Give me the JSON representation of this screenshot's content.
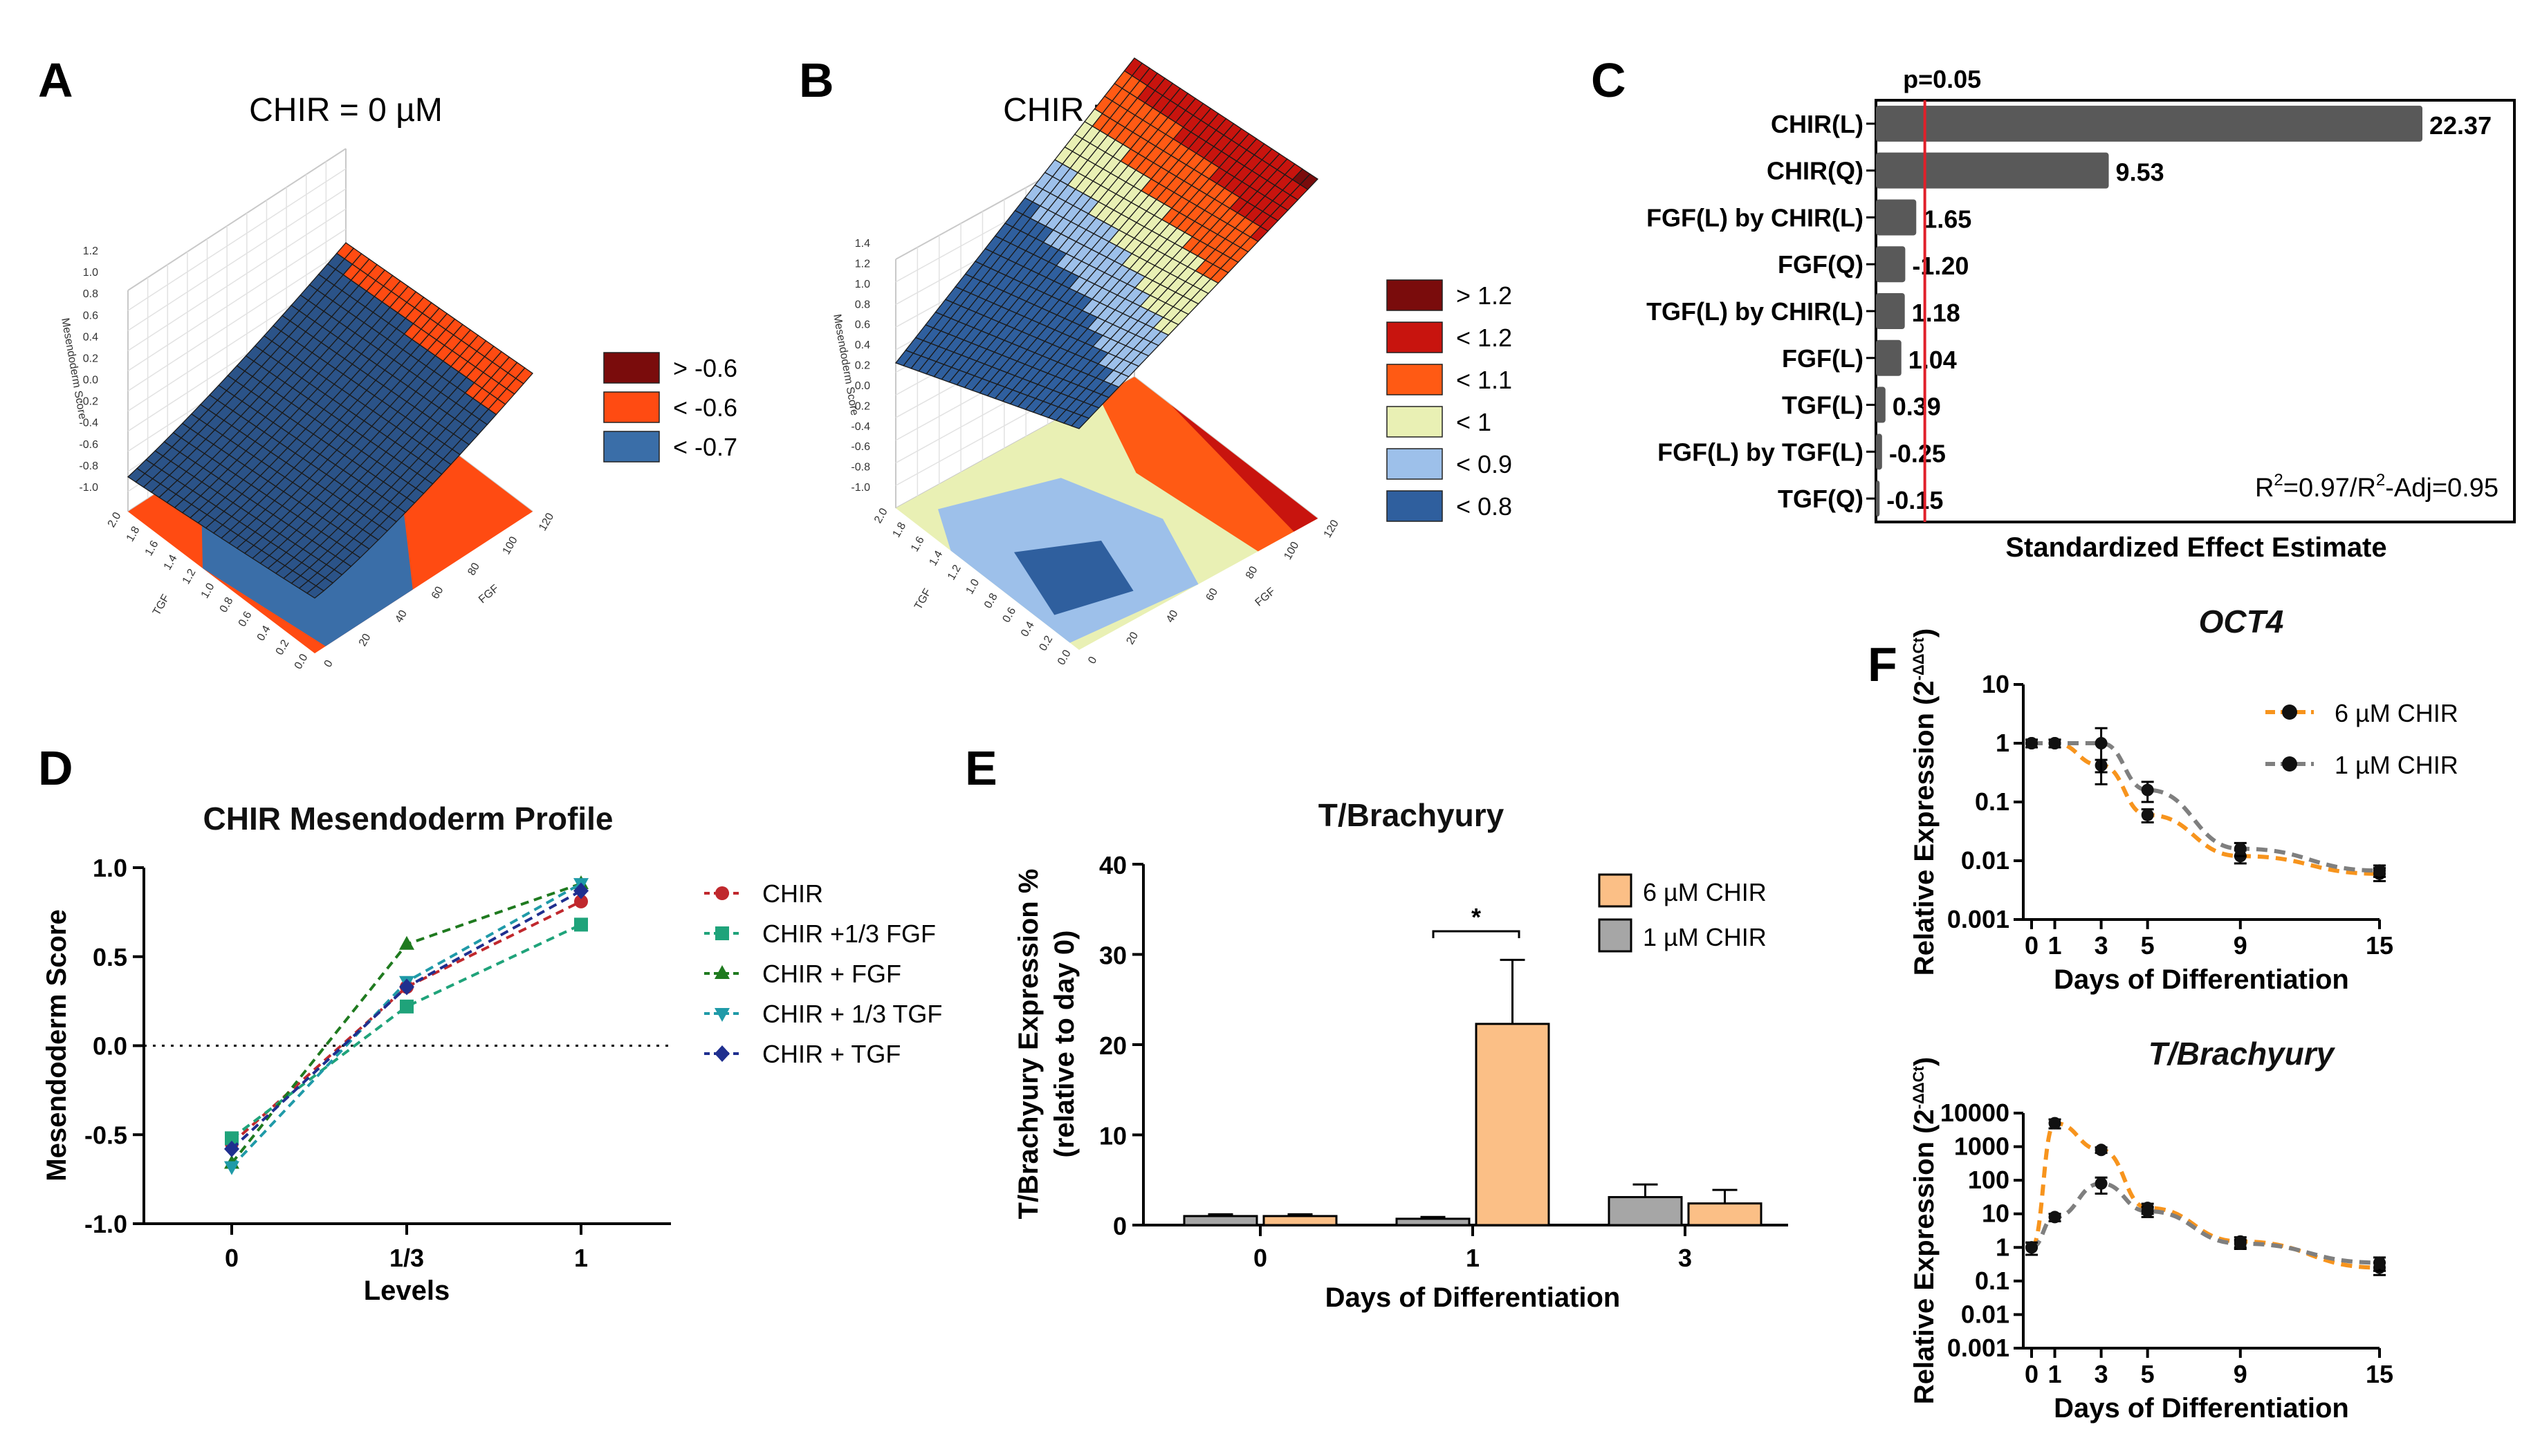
{
  "panel_labels": [
    "A",
    "B",
    "C",
    "D",
    "E",
    "F"
  ],
  "chart_data": [
    {
      "panel": "A",
      "type": "surface3d",
      "title": "CHIR = 0 µM",
      "zlabel": "Mesendoderm Score",
      "xlabel": "FGF",
      "ylabel": "TGF",
      "z_ticks": [
        "1.2",
        "1.0",
        "0.8",
        "0.6",
        "0.4",
        "0.2",
        "0.0",
        "-0.2",
        "-0.4",
        "-0.6",
        "-0.8",
        "-1.0"
      ],
      "y_ticks": [
        "0.0",
        "0.2",
        "0.4",
        "0.6",
        "0.8",
        "1.0",
        "1.2",
        "1.4",
        "1.6",
        "1.8",
        "2.0"
      ],
      "x_ticks": [
        "0",
        "20",
        "40",
        "60",
        "80",
        "100",
        "120"
      ],
      "legend": [
        {
          "label": "> -0.6",
          "color": "#7a0c0c"
        },
        {
          "label": "< -0.6",
          "color": "#ff4b12"
        },
        {
          "label": "< -0.7",
          "color": "#3a6ea8"
        }
      ]
    },
    {
      "panel": "B",
      "type": "surface3d",
      "title": "CHIR = 6 µM",
      "zlabel": "Mesendoderm Score",
      "xlabel": "FGF",
      "ylabel": "TGF",
      "z_ticks": [
        "1.4",
        "1.2",
        "1.0",
        "0.8",
        "0.6",
        "0.4",
        "0.2",
        "0.0",
        "-0.2",
        "-0.4",
        "-0.6",
        "-0.8",
        "-1.0"
      ],
      "y_ticks": [
        "0.0",
        "0.2",
        "0.4",
        "0.6",
        "0.8",
        "1.0",
        "1.2",
        "1.4",
        "1.6",
        "1.8",
        "2.0"
      ],
      "x_ticks": [
        "0",
        "20",
        "40",
        "60",
        "80",
        "100",
        "120"
      ],
      "legend": [
        {
          "label": "> 1.2",
          "color": "#7a0c0c"
        },
        {
          "label": "< 1.2",
          "color": "#c8140e"
        },
        {
          "label": "< 1.1",
          "color": "#ff5a14"
        },
        {
          "label": "< 1",
          "color": "#e9f0b4"
        },
        {
          "label": "< 0.9",
          "color": "#9dc0ea"
        },
        {
          "label": "< 0.8",
          "color": "#2f5f9e"
        }
      ]
    },
    {
      "panel": "C",
      "type": "bar",
      "orientation": "horizontal",
      "xlabel": "Standardized Effect Estimate",
      "reference_label": "p=0.05",
      "reference_value": 2.0,
      "xlim": [
        0,
        25
      ],
      "annotation": {
        "pre": "R",
        "sup": "2",
        "mid": "=0.97/R",
        "sup2": "2",
        "post": "-Adj=0.95"
      },
      "categories": [
        "CHIR(L)",
        "CHIR(Q)",
        "FGF(L) by CHIR(L)",
        "FGF(Q)",
        "TGF(L) by CHIR(L)",
        "FGF(L)",
        "TGF(L)",
        "FGF(L) by TGF(L)",
        "TGF(Q)"
      ],
      "values": [
        22.37,
        9.53,
        1.65,
        1.2,
        1.18,
        1.04,
        0.39,
        0.25,
        0.15
      ],
      "value_labels": [
        "22.37",
        "9.53",
        "1.65",
        "-1.20",
        "1.18",
        "1.04",
        "0.39",
        "-0.25",
        "-0.15"
      ],
      "color": "#595959"
    },
    {
      "panel": "D",
      "type": "line",
      "title": "CHIR Mesendoderm Profile",
      "xlabel": "Levels",
      "ylabel": "Mesendoderm Score",
      "categories": [
        "0",
        "1/3",
        "1"
      ],
      "ylim": [
        -1.0,
        1.0
      ],
      "y_ticks": [
        "1.0",
        "0.5",
        "0.0",
        "-0.5",
        "-1.0"
      ],
      "series": [
        {
          "name": "CHIR",
          "values": [
            -0.55,
            0.33,
            0.81
          ],
          "color": "#c0282d",
          "marker": "circle"
        },
        {
          "name": "CHIR +1/3 FGF",
          "values": [
            -0.52,
            0.22,
            0.68
          ],
          "color": "#1fa37a",
          "marker": "square"
        },
        {
          "name": "CHIR + FGF",
          "values": [
            -0.66,
            0.57,
            0.91
          ],
          "color": "#1f7a1f",
          "marker": "triangle-up"
        },
        {
          "name": "CHIR + 1/3 TGF",
          "values": [
            -0.68,
            0.36,
            0.91
          ],
          "color": "#1f9aa8",
          "marker": "triangle-down"
        },
        {
          "name": "CHIR + TGF",
          "values": [
            -0.58,
            0.33,
            0.87
          ],
          "color": "#1f2f8f",
          "marker": "diamond"
        }
      ]
    },
    {
      "panel": "E",
      "type": "bar",
      "title": "T/Brachyury",
      "xlabel": "Days of Differentiation",
      "ylabel_line1": "T/Brachyury Expression %",
      "ylabel_line2": "(relative to day 0)",
      "categories": [
        "0",
        "1",
        "3"
      ],
      "ylim": [
        0,
        40
      ],
      "y_ticks": [
        "0",
        "10",
        "20",
        "30",
        "40"
      ],
      "significance": "*",
      "series": [
        {
          "name": "1 µM CHIR",
          "values": [
            1.0,
            0.7,
            3.1
          ],
          "errors": [
            0.2,
            0.2,
            1.4
          ],
          "color": "#a6a6a6"
        },
        {
          "name": "6 µM CHIR",
          "values": [
            1.0,
            22.3,
            2.4
          ],
          "errors": [
            0.2,
            7.1,
            1.5
          ],
          "color": "#fbbf86"
        }
      ]
    },
    {
      "panel": "F",
      "type": "line",
      "scale": "log",
      "title": "OCT4",
      "xlabel": "Days of Differentiation",
      "ylabel": "Relative Expression (2",
      "ylabel_sup": "-ΔΔCt",
      "ylabel_close": ")",
      "x": [
        0,
        1,
        3,
        5,
        9,
        15
      ],
      "x_ticks": [
        "0",
        "1",
        "3",
        "5",
        "9",
        "15"
      ],
      "y_ticks": [
        "10",
        "1",
        "0.1",
        "0.01",
        "0.001"
      ],
      "series": [
        {
          "name": "6 µM CHIR",
          "values": [
            1.0,
            1.0,
            0.42,
            0.06,
            0.012,
            0.006
          ],
          "errors": [
            0.15,
            0.15,
            0.1,
            0.015,
            0.003,
            0.0015
          ],
          "color": "#f7941d"
        },
        {
          "name": "1 µM CHIR",
          "values": [
            1.0,
            1.0,
            1.0,
            0.16,
            0.016,
            0.0068
          ],
          "errors": [
            0.15,
            0.15,
            0.8,
            0.06,
            0.004,
            0.0015
          ],
          "color": "#7f7f7f"
        }
      ]
    },
    {
      "panel": "F",
      "type": "line",
      "scale": "log",
      "title": "T/Brachyury",
      "xlabel": "Days of Differentiation",
      "ylabel": "Relative Expression (2",
      "ylabel_sup": "-ΔΔCt",
      "ylabel_close": ")",
      "x": [
        0,
        1,
        3,
        5,
        9,
        15
      ],
      "x_ticks": [
        "0",
        "1",
        "3",
        "5",
        "9",
        "15"
      ],
      "y_ticks": [
        "10000",
        "1000",
        "100",
        "10",
        "1",
        "0.1",
        "0.01",
        "0.001"
      ],
      "series": [
        {
          "name": "6 µM CHIR",
          "values": [
            1.0,
            5000,
            800,
            15,
            1.5,
            0.25
          ],
          "errors": [
            0.4,
            1500,
            150,
            5,
            0.5,
            0.1
          ],
          "color": "#f7941d"
        },
        {
          "name": "1 µM CHIR",
          "values": [
            1.0,
            8,
            80,
            12,
            1.3,
            0.35
          ],
          "errors": [
            0.4,
            2,
            40,
            4,
            0.4,
            0.15
          ],
          "color": "#7f7f7f"
        }
      ]
    }
  ]
}
